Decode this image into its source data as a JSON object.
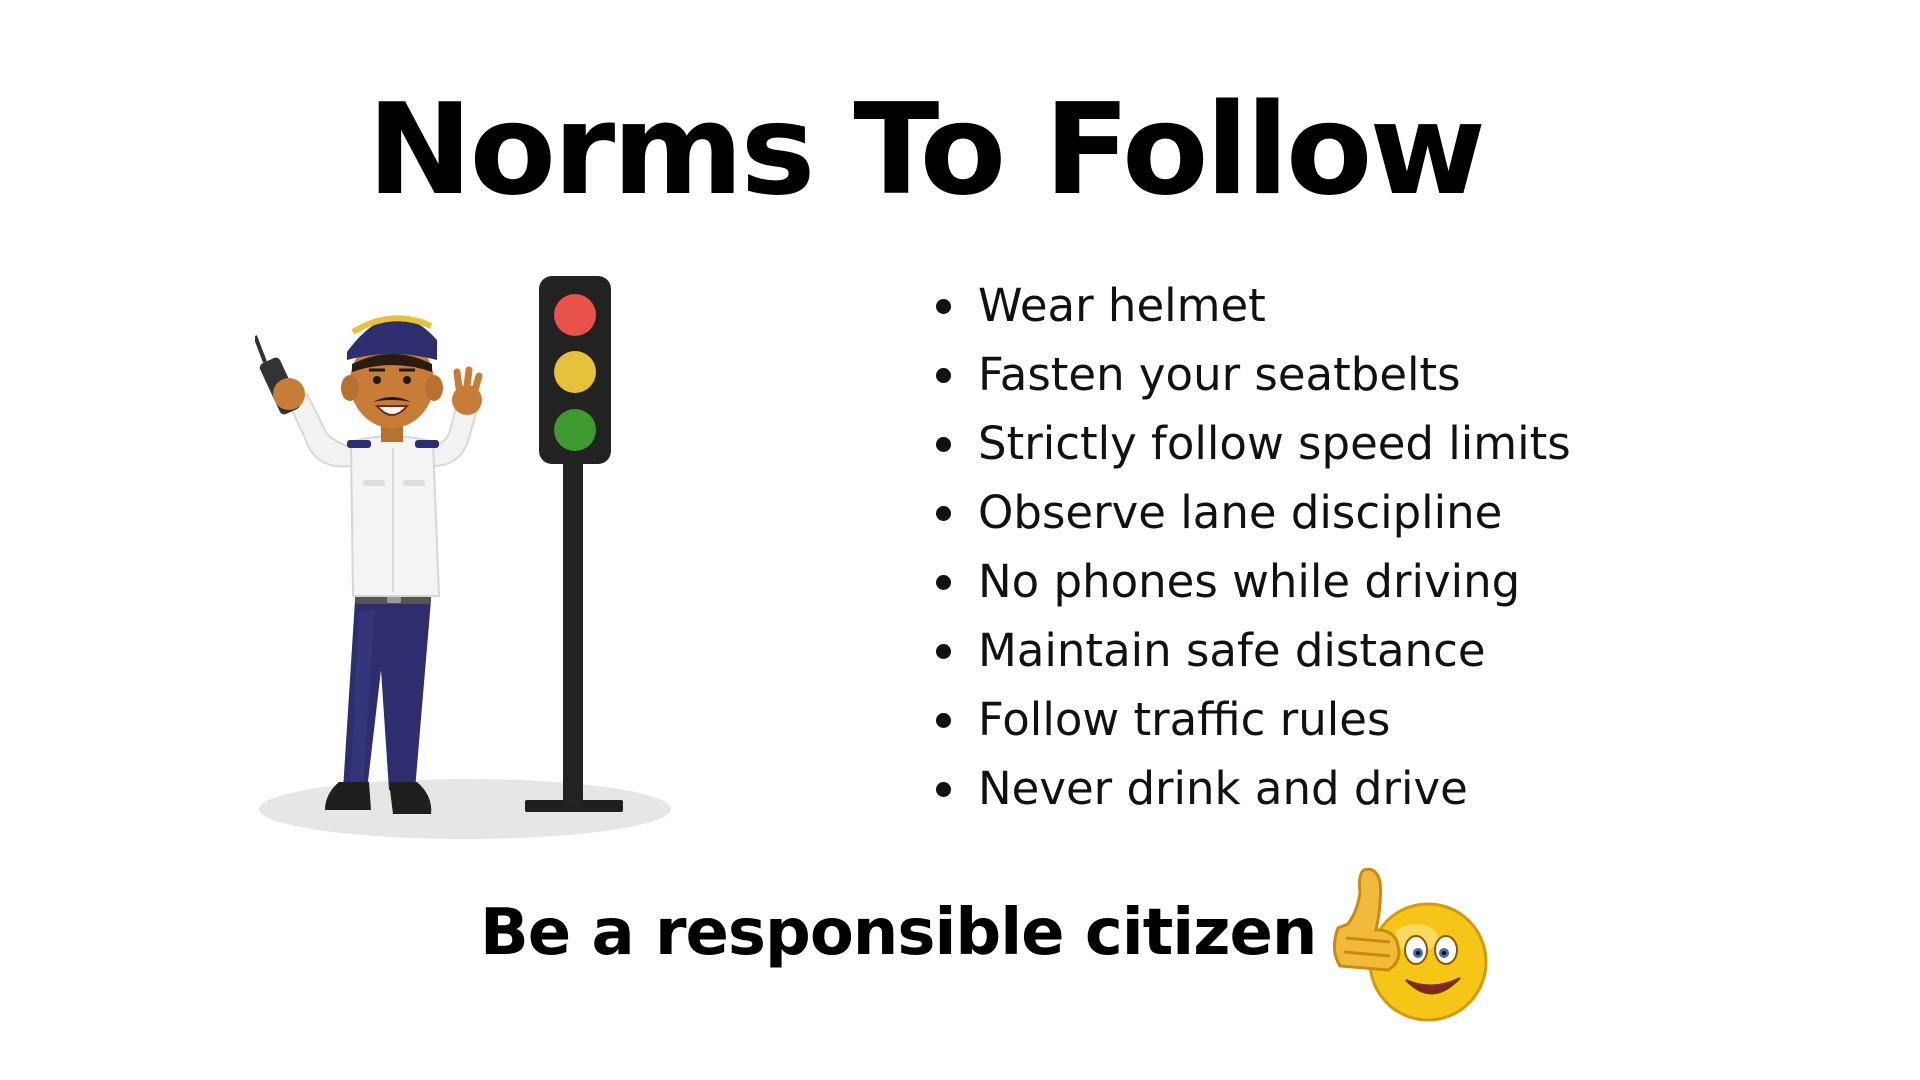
{
  "title": "Norms To Follow",
  "illustration": {
    "figure": "traffic-police-officer",
    "prop": "traffic-light",
    "lights": [
      "#e8524a",
      "#e8c13c",
      "#3f9a2f"
    ]
  },
  "norms": [
    "Wear helmet",
    "Fasten your seatbelts",
    "Strictly follow speed limits",
    "Observe lane discipline",
    "No phones while driving",
    "Maintain safe distance",
    "Follow traffic rules",
    "Never drink and drive"
  ],
  "tagline": "Be a responsible citizen",
  "tagline_icon": "thumbs-up-smiley-icon"
}
